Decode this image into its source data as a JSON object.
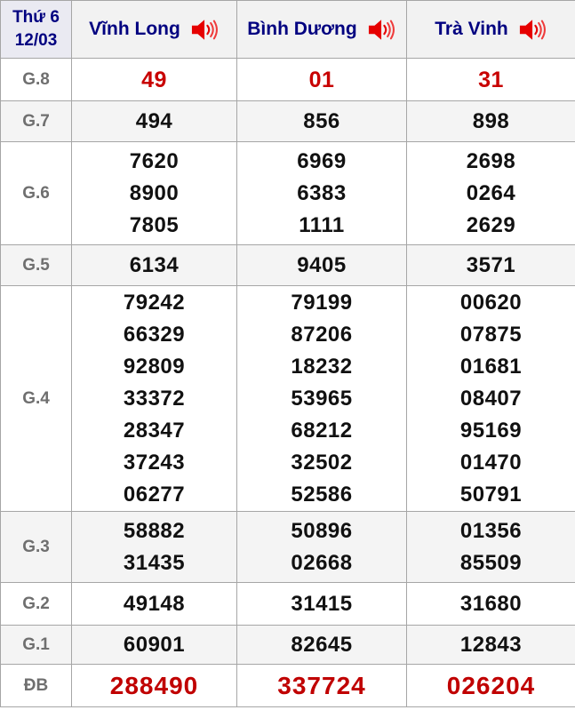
{
  "header": {
    "day": "Thứ 6",
    "date": "12/03",
    "columns": [
      {
        "label": "Vĩnh Long"
      },
      {
        "label": "Bình Dương"
      },
      {
        "label": "Trà Vinh"
      }
    ]
  },
  "prizes": [
    {
      "label": "G.8",
      "style": "red",
      "values": [
        [
          "49"
        ],
        [
          "01"
        ],
        [
          "31"
        ]
      ]
    },
    {
      "label": "G.7",
      "style": "",
      "values": [
        [
          "494"
        ],
        [
          "856"
        ],
        [
          "898"
        ]
      ]
    },
    {
      "label": "G.6",
      "style": "",
      "values": [
        [
          "7620",
          "8900",
          "7805"
        ],
        [
          "6969",
          "6383",
          "1111"
        ],
        [
          "2698",
          "0264",
          "2629"
        ]
      ]
    },
    {
      "label": "G.5",
      "style": "",
      "values": [
        [
          "6134"
        ],
        [
          "9405"
        ],
        [
          "3571"
        ]
      ]
    },
    {
      "label": "G.4",
      "style": "",
      "values": [
        [
          "79242",
          "66329",
          "92809",
          "33372",
          "28347",
          "37243",
          "06277"
        ],
        [
          "79199",
          "87206",
          "18232",
          "53965",
          "68212",
          "32502",
          "52586"
        ],
        [
          "00620",
          "07875",
          "01681",
          "08407",
          "95169",
          "01470",
          "50791"
        ]
      ]
    },
    {
      "label": "G.3",
      "style": "",
      "values": [
        [
          "58882",
          "31435"
        ],
        [
          "50896",
          "02668"
        ],
        [
          "01356",
          "85509"
        ]
      ]
    },
    {
      "label": "G.2",
      "style": "",
      "values": [
        [
          "49148"
        ],
        [
          "31415"
        ],
        [
          "31680"
        ]
      ]
    },
    {
      "label": "G.1",
      "style": "",
      "values": [
        [
          "60901"
        ],
        [
          "82645"
        ],
        [
          "12843"
        ]
      ]
    },
    {
      "label": "ĐB",
      "style": "red-large",
      "values": [
        [
          "288490"
        ],
        [
          "337724"
        ],
        [
          "026204"
        ]
      ]
    }
  ],
  "colors": {
    "navy": "#000080",
    "red_g8": "#c80000",
    "red_db": "#c00000",
    "label_gray": "#6f6f6f",
    "stripe": "#f4f4f4",
    "header_bg": "#f2f2f2",
    "date_cell_bg": "#eaeaf2",
    "border": "#a6a6a6"
  },
  "icons": {
    "speaker": "speaker-icon"
  }
}
